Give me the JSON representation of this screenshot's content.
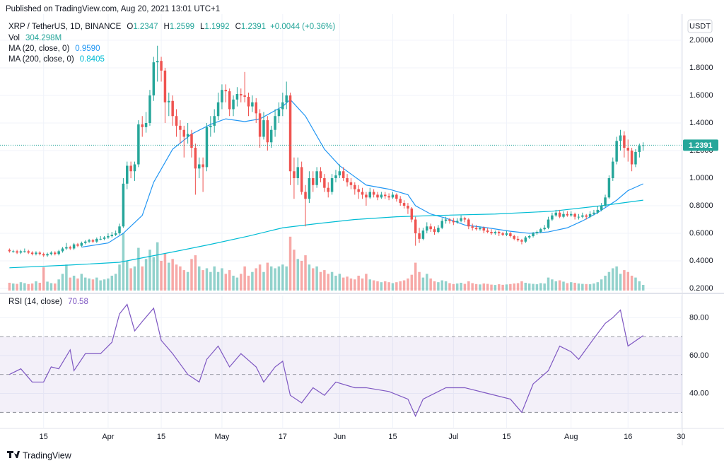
{
  "header": "Published on TradingView.com, Aug 20, 2021 13:01 UTC+1",
  "currency": "USDT",
  "footer_logo": "TradingView",
  "chart_data": {
    "type": "candlestick",
    "symbol": "XRP / TetherUS, 1D, BINANCE",
    "ohlc_labels": [
      "O",
      "H",
      "L",
      "C"
    ],
    "change_label": "+0.0044 (+0.36%)",
    "up_color": "#26a69a",
    "down_color": "#ef5350",
    "grid": true,
    "xlim": [
      -1,
      177.3
    ],
    "xticks": [
      {
        "value": 9,
        "label": "15"
      },
      {
        "value": 26,
        "label": "Apr"
      },
      {
        "value": 40,
        "label": "15"
      },
      {
        "value": 56,
        "label": "May"
      },
      {
        "value": 72,
        "label": "17"
      },
      {
        "value": 87,
        "label": "Jun"
      },
      {
        "value": 101,
        "label": "15"
      },
      {
        "value": 117,
        "label": "Jul"
      },
      {
        "value": 131,
        "label": "15"
      },
      {
        "value": 148,
        "label": "Aug"
      },
      {
        "value": 163,
        "label": "16"
      },
      {
        "value": 177,
        "label": "30"
      }
    ],
    "ylim": [
      0.185,
      2.138
    ],
    "yticks": [
      {
        "value": 0.2,
        "label": "0.2000"
      },
      {
        "value": 0.4,
        "label": "0.4000"
      },
      {
        "value": 0.6,
        "label": "0.6000"
      },
      {
        "value": 0.8,
        "label": "0.8000"
      },
      {
        "value": 1.0,
        "label": "1.0000"
      },
      {
        "value": 1.2,
        "label": "1.2000"
      },
      {
        "value": 1.4,
        "label": "1.4000"
      },
      {
        "value": 1.6,
        "label": "1.6000"
      },
      {
        "value": 1.8,
        "label": "1.8000"
      },
      {
        "value": 2.0,
        "label": "2.0000"
      }
    ],
    "ohlc": [
      [
        0.48,
        0.49,
        0.46,
        0.47
      ],
      [
        0.47,
        0.48,
        0.46,
        0.47
      ],
      [
        0.47,
        0.48,
        0.45,
        0.46
      ],
      [
        0.46,
        0.48,
        0.45,
        0.47
      ],
      [
        0.47,
        0.49,
        0.46,
        0.47
      ],
      [
        0.47,
        0.48,
        0.45,
        0.46
      ],
      [
        0.46,
        0.47,
        0.44,
        0.45
      ],
      [
        0.45,
        0.47,
        0.44,
        0.46
      ],
      [
        0.46,
        0.47,
        0.44,
        0.45
      ],
      [
        0.45,
        0.46,
        0.43,
        0.44
      ],
      [
        0.44,
        0.46,
        0.43,
        0.45
      ],
      [
        0.45,
        0.47,
        0.44,
        0.46
      ],
      [
        0.46,
        0.47,
        0.44,
        0.45
      ],
      [
        0.45,
        0.48,
        0.44,
        0.47
      ],
      [
        0.47,
        0.5,
        0.46,
        0.49
      ],
      [
        0.49,
        0.53,
        0.48,
        0.5
      ],
      [
        0.5,
        0.51,
        0.48,
        0.49
      ],
      [
        0.49,
        0.53,
        0.48,
        0.52
      ],
      [
        0.52,
        0.53,
        0.5,
        0.51
      ],
      [
        0.51,
        0.54,
        0.5,
        0.53
      ],
      [
        0.53,
        0.55,
        0.52,
        0.54
      ],
      [
        0.54,
        0.56,
        0.53,
        0.55
      ],
      [
        0.55,
        0.56,
        0.53,
        0.54
      ],
      [
        0.54,
        0.57,
        0.53,
        0.56
      ],
      [
        0.56,
        0.58,
        0.55,
        0.56
      ],
      [
        0.56,
        0.58,
        0.55,
        0.57
      ],
      [
        0.57,
        0.6,
        0.56,
        0.58
      ],
      [
        0.58,
        0.61,
        0.57,
        0.59
      ],
      [
        0.59,
        0.62,
        0.58,
        0.6
      ],
      [
        0.6,
        0.67,
        0.59,
        0.65
      ],
      [
        0.65,
        1.0,
        0.64,
        0.96
      ],
      [
        0.96,
        1.12,
        0.92,
        1.09
      ],
      [
        1.09,
        1.12,
        1.0,
        1.05
      ],
      [
        1.05,
        1.12,
        0.98,
        1.1
      ],
      [
        1.1,
        1.42,
        1.08,
        1.39
      ],
      [
        1.39,
        1.45,
        1.3,
        1.37
      ],
      [
        1.37,
        1.48,
        1.33,
        1.4
      ],
      [
        1.4,
        1.64,
        1.38,
        1.6
      ],
      [
        1.6,
        1.88,
        1.56,
        1.84
      ],
      [
        1.84,
        1.96,
        1.7,
        1.85
      ],
      [
        1.85,
        1.88,
        1.7,
        1.78
      ],
      [
        1.78,
        1.8,
        1.4,
        1.55
      ],
      [
        1.55,
        1.62,
        1.45,
        1.56
      ],
      [
        1.56,
        1.6,
        1.38,
        1.45
      ],
      [
        1.45,
        1.5,
        1.3,
        1.38
      ],
      [
        1.38,
        1.42,
        1.25,
        1.35
      ],
      [
        1.35,
        1.38,
        1.15,
        1.3
      ],
      [
        1.3,
        1.4,
        1.25,
        1.32
      ],
      [
        1.32,
        1.35,
        1.15,
        1.22
      ],
      [
        1.22,
        1.25,
        0.88,
        1.07
      ],
      [
        1.07,
        1.15,
        1.0,
        1.1
      ],
      [
        1.1,
        1.15,
        0.9,
        1.08
      ],
      [
        1.08,
        1.4,
        1.05,
        1.37
      ],
      [
        1.37,
        1.45,
        1.3,
        1.38
      ],
      [
        1.38,
        1.5,
        1.33,
        1.45
      ],
      [
        1.45,
        1.62,
        1.42,
        1.55
      ],
      [
        1.55,
        1.68,
        1.5,
        1.64
      ],
      [
        1.64,
        1.68,
        1.55,
        1.63
      ],
      [
        1.63,
        1.65,
        1.45,
        1.5
      ],
      [
        1.5,
        1.6,
        1.45,
        1.57
      ],
      [
        1.57,
        1.66,
        1.52,
        1.61
      ],
      [
        1.61,
        1.65,
        1.55,
        1.6
      ],
      [
        1.6,
        1.77,
        1.55,
        1.59
      ],
      [
        1.59,
        1.62,
        1.45,
        1.52
      ],
      [
        1.52,
        1.6,
        1.48,
        1.55
      ],
      [
        1.55,
        1.58,
        1.4,
        1.47
      ],
      [
        1.47,
        1.5,
        1.22,
        1.3
      ],
      [
        1.3,
        1.48,
        1.28,
        1.42
      ],
      [
        1.42,
        1.45,
        1.2,
        1.26
      ],
      [
        1.26,
        1.38,
        1.22,
        1.35
      ],
      [
        1.35,
        1.5,
        1.3,
        1.45
      ],
      [
        1.45,
        1.55,
        1.4,
        1.5
      ],
      [
        1.5,
        1.62,
        1.45,
        1.55
      ],
      [
        1.55,
        1.7,
        1.5,
        1.6
      ],
      [
        1.6,
        1.62,
        0.95,
        1.05
      ],
      [
        1.05,
        1.15,
        0.85,
        1.0
      ],
      [
        1.0,
        1.15,
        0.95,
        1.08
      ],
      [
        1.08,
        1.12,
        0.88,
        0.9
      ],
      [
        0.9,
        0.95,
        0.65,
        0.85
      ],
      [
        0.85,
        1.05,
        0.82,
        1.0
      ],
      [
        1.0,
        1.05,
        0.9,
        0.95
      ],
      [
        0.95,
        1.08,
        0.93,
        1.05
      ],
      [
        1.05,
        1.08,
        0.97,
        1.0
      ],
      [
        1.0,
        1.03,
        0.9,
        0.93
      ],
      [
        0.93,
        0.97,
        0.86,
        0.9
      ],
      [
        0.9,
        1.03,
        0.88,
        1.0
      ],
      [
        1.0,
        1.06,
        0.97,
        1.02
      ],
      [
        1.02,
        1.1,
        1.0,
        1.05
      ],
      [
        1.05,
        1.08,
        0.98,
        1.0
      ],
      [
        1.0,
        1.03,
        0.94,
        0.97
      ],
      [
        0.97,
        1.0,
        0.92,
        0.95
      ],
      [
        0.95,
        0.97,
        0.88,
        0.92
      ],
      [
        0.92,
        0.95,
        0.85,
        0.9
      ],
      [
        0.9,
        0.93,
        0.85,
        0.88
      ],
      [
        0.88,
        0.9,
        0.8,
        0.86
      ],
      [
        0.86,
        0.93,
        0.85,
        0.9
      ],
      [
        0.9,
        0.92,
        0.86,
        0.88
      ],
      [
        0.88,
        0.9,
        0.84,
        0.86
      ],
      [
        0.86,
        0.9,
        0.85,
        0.88
      ],
      [
        0.88,
        0.9,
        0.85,
        0.87
      ],
      [
        0.87,
        0.89,
        0.84,
        0.86
      ],
      [
        0.86,
        0.9,
        0.85,
        0.88
      ],
      [
        0.88,
        0.89,
        0.83,
        0.85
      ],
      [
        0.85,
        0.87,
        0.8,
        0.82
      ],
      [
        0.82,
        0.84,
        0.78,
        0.8
      ],
      [
        0.8,
        0.82,
        0.74,
        0.78
      ],
      [
        0.78,
        0.79,
        0.68,
        0.7
      ],
      [
        0.7,
        0.72,
        0.51,
        0.6
      ],
      [
        0.6,
        0.64,
        0.53,
        0.56
      ],
      [
        0.56,
        0.64,
        0.55,
        0.62
      ],
      [
        0.62,
        0.68,
        0.6,
        0.65
      ],
      [
        0.65,
        0.67,
        0.61,
        0.63
      ],
      [
        0.63,
        0.65,
        0.59,
        0.61
      ],
      [
        0.61,
        0.66,
        0.6,
        0.64
      ],
      [
        0.64,
        0.71,
        0.63,
        0.69
      ],
      [
        0.69,
        0.72,
        0.67,
        0.7
      ],
      [
        0.7,
        0.71,
        0.67,
        0.69
      ],
      [
        0.69,
        0.71,
        0.66,
        0.68
      ],
      [
        0.68,
        0.71,
        0.67,
        0.69
      ],
      [
        0.69,
        0.73,
        0.68,
        0.71
      ],
      [
        0.71,
        0.72,
        0.68,
        0.7
      ],
      [
        0.7,
        0.71,
        0.63,
        0.65
      ],
      [
        0.65,
        0.67,
        0.62,
        0.64
      ],
      [
        0.64,
        0.66,
        0.62,
        0.63
      ],
      [
        0.63,
        0.65,
        0.62,
        0.64
      ],
      [
        0.64,
        0.65,
        0.6,
        0.62
      ],
      [
        0.62,
        0.64,
        0.6,
        0.61
      ],
      [
        0.61,
        0.63,
        0.59,
        0.6
      ],
      [
        0.6,
        0.62,
        0.59,
        0.61
      ],
      [
        0.61,
        0.62,
        0.58,
        0.6
      ],
      [
        0.6,
        0.61,
        0.58,
        0.59
      ],
      [
        0.59,
        0.62,
        0.58,
        0.6
      ],
      [
        0.6,
        0.61,
        0.57,
        0.58
      ],
      [
        0.58,
        0.59,
        0.55,
        0.56
      ],
      [
        0.56,
        0.58,
        0.54,
        0.55
      ],
      [
        0.55,
        0.56,
        0.52,
        0.54
      ],
      [
        0.54,
        0.58,
        0.53,
        0.57
      ],
      [
        0.57,
        0.59,
        0.56,
        0.58
      ],
      [
        0.58,
        0.61,
        0.57,
        0.6
      ],
      [
        0.6,
        0.62,
        0.59,
        0.61
      ],
      [
        0.61,
        0.64,
        0.6,
        0.63
      ],
      [
        0.63,
        0.66,
        0.62,
        0.64
      ],
      [
        0.64,
        0.72,
        0.63,
        0.7
      ],
      [
        0.7,
        0.75,
        0.69,
        0.73
      ],
      [
        0.73,
        0.77,
        0.72,
        0.75
      ],
      [
        0.75,
        0.77,
        0.71,
        0.72
      ],
      [
        0.72,
        0.76,
        0.71,
        0.74
      ],
      [
        0.74,
        0.76,
        0.72,
        0.73
      ],
      [
        0.73,
        0.76,
        0.72,
        0.74
      ],
      [
        0.74,
        0.75,
        0.7,
        0.72
      ],
      [
        0.72,
        0.74,
        0.7,
        0.72
      ],
      [
        0.72,
        0.75,
        0.71,
        0.73
      ],
      [
        0.73,
        0.74,
        0.7,
        0.72
      ],
      [
        0.72,
        0.76,
        0.71,
        0.74
      ],
      [
        0.74,
        0.77,
        0.73,
        0.75
      ],
      [
        0.75,
        0.8,
        0.74,
        0.77
      ],
      [
        0.77,
        0.82,
        0.76,
        0.8
      ],
      [
        0.8,
        0.88,
        0.79,
        0.86
      ],
      [
        0.86,
        1.02,
        0.85,
        1.0
      ],
      [
        1.0,
        1.15,
        0.98,
        1.12
      ],
      [
        1.12,
        1.3,
        1.1,
        1.27
      ],
      [
        1.27,
        1.35,
        1.2,
        1.31
      ],
      [
        1.31,
        1.34,
        1.15,
        1.22
      ],
      [
        1.22,
        1.28,
        1.12,
        1.2
      ],
      [
        1.2,
        1.22,
        1.05,
        1.1
      ],
      [
        1.1,
        1.21,
        1.08,
        1.19
      ],
      [
        1.19,
        1.25,
        1.15,
        1.2347
      ],
      [
        1.2347,
        1.2599,
        1.1992,
        1.2391
      ]
    ],
    "volume": {
      "name": "Vol",
      "ylim": [
        0,
        14500
      ],
      "last_value_label": "304.298M",
      "values": [
        420,
        380,
        360,
        450,
        400,
        350,
        380,
        500,
        420,
        1250,
        480,
        400,
        380,
        600,
        900,
        1400,
        700,
        800,
        650,
        900,
        700,
        650,
        600,
        700,
        550,
        600,
        650,
        800,
        900,
        1400,
        3100,
        1600,
        1200,
        1300,
        2300,
        1300,
        1700,
        2200,
        1800,
        2600,
        1600,
        2000,
        1500,
        1700,
        1400,
        1300,
        1100,
        1000,
        1700,
        1900,
        1300,
        1100,
        1200,
        1000,
        1300,
        1000,
        1200,
        900,
        1100,
        800,
        700,
        900,
        1300,
        800,
        1000,
        1200,
        1400,
        1000,
        1500,
        1300,
        1200,
        1300,
        1400,
        1300,
        2900,
        2200,
        1700,
        1600,
        1900,
        1400,
        1200,
        1300,
        1000,
        1100,
        900,
        1000,
        800,
        900,
        700,
        750,
        650,
        600,
        800,
        650,
        900,
        600,
        550,
        500,
        450,
        500,
        450,
        400,
        450,
        500,
        550,
        650,
        850,
        1500,
        1000,
        700,
        900,
        650,
        500,
        450,
        550,
        500,
        400,
        350,
        380,
        420,
        360,
        500,
        400,
        350,
        330,
        380,
        360,
        320,
        300,
        340,
        310,
        330,
        350,
        380,
        400,
        500,
        420,
        380,
        360,
        340,
        400,
        380,
        700,
        600,
        500,
        550,
        480,
        400,
        450,
        420,
        380,
        360,
        350,
        340,
        380,
        450,
        600,
        800,
        1000,
        1200,
        1300,
        900,
        1100,
        1000,
        800,
        700,
        500,
        304.298
      ]
    },
    "overlays": [
      {
        "name": "MA (20, close, 0)",
        "color": "#2196f3",
        "last_value_label": "0.9590",
        "x": [
          19,
          26,
          30,
          35,
          38,
          43,
          48,
          53,
          57,
          62,
          66,
          72,
          74,
          78,
          83,
          87,
          91,
          94,
          100,
          105,
          107,
          111,
          115,
          120,
          126,
          132,
          137,
          142,
          147,
          151,
          155,
          160,
          163,
          167
        ],
        "values": [
          0.5,
          0.53,
          0.6,
          0.73,
          0.97,
          1.21,
          1.32,
          1.39,
          1.43,
          1.41,
          1.43,
          1.52,
          1.57,
          1.45,
          1.21,
          1.09,
          1.01,
          0.95,
          0.92,
          0.88,
          0.8,
          0.74,
          0.71,
          0.66,
          0.64,
          0.615,
          0.6,
          0.61,
          0.64,
          0.69,
          0.75,
          0.84,
          0.91,
          0.959
        ]
      },
      {
        "name": "MA (200, close, 0)",
        "color": "#00bcd4",
        "x": [
          0,
          16,
          29,
          44,
          53,
          63,
          72,
          81,
          91,
          102,
          113,
          128,
          143,
          156,
          167
        ],
        "values": [
          0.35,
          0.37,
          0.39,
          0.47,
          0.52,
          0.58,
          0.64,
          0.67,
          0.7,
          0.72,
          0.73,
          0.74,
          0.76,
          0.8,
          0.8405
        ]
      }
    ],
    "rsi": {
      "name": "RSI (14, close)",
      "color": "#7e57c2",
      "ylim": [
        21.9,
        91.7
      ],
      "bands": [
        30,
        50,
        70
      ],
      "yticks": [
        {
          "value": 40,
          "label": "40.00"
        },
        {
          "value": 60,
          "label": "60.00"
        },
        {
          "value": 80,
          "label": "80.00"
        }
      ],
      "x": [
        0,
        3,
        6,
        9,
        11,
        13,
        16,
        17,
        20,
        24,
        27,
        29,
        31,
        33,
        35,
        38,
        40,
        43,
        47,
        50,
        52,
        55,
        58,
        61,
        65,
        67,
        70,
        72,
        74,
        77,
        80,
        83,
        86,
        91,
        94,
        100,
        105,
        107,
        109,
        115,
        120,
        126,
        132,
        135,
        138,
        142,
        145,
        148,
        150,
        154,
        157,
        159,
        161,
        163,
        167
      ],
      "values": [
        50,
        53,
        46,
        46,
        54,
        53,
        63,
        52,
        61,
        61,
        67,
        82,
        87,
        73,
        78,
        85,
        68,
        61,
        50,
        46,
        58,
        65,
        54,
        61,
        54,
        46,
        54,
        57,
        39,
        35,
        43,
        39,
        46,
        43,
        43,
        41,
        37,
        28,
        37,
        43,
        43,
        40,
        37,
        30,
        45,
        52,
        65,
        62,
        58,
        69,
        77,
        80,
        84,
        65,
        70.58
      ]
    }
  }
}
